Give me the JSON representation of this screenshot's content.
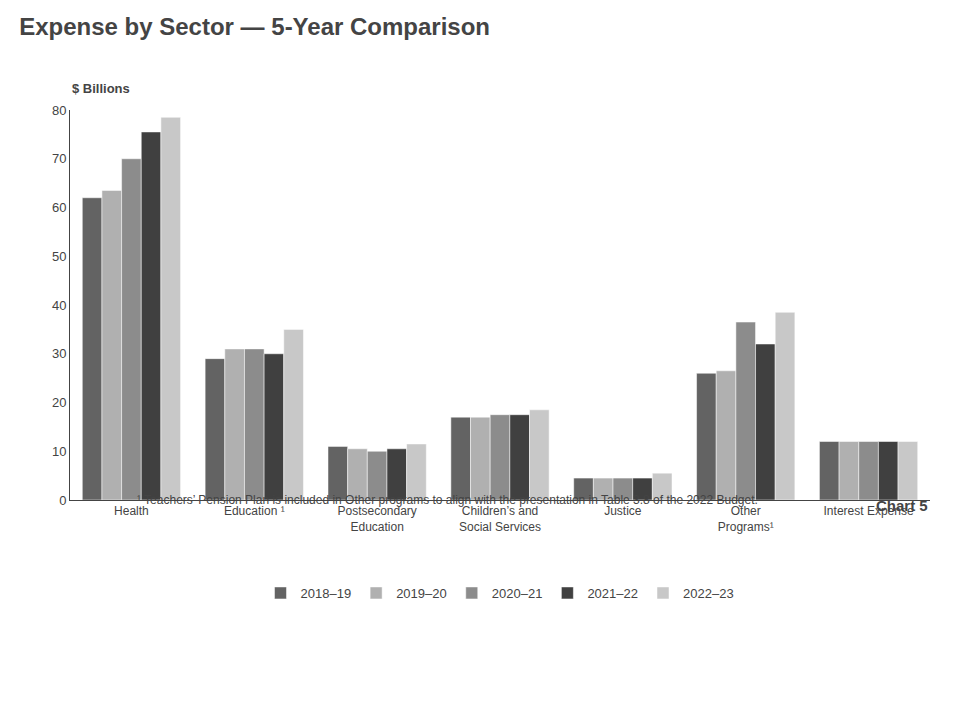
{
  "chart_data": {
    "type": "bar",
    "title": "Expense by Sector — 5-Year Comparison",
    "ylabel": "$ Billions",
    "annotations": [
      "Chart 5",
      "¹ Teachers’ Pension Plan is included in Other programs to align with the presentation in Table 3.8 of the 2022 Budget."
    ],
    "categories": [
      "Health",
      "Education ¹",
      "Postsecondary\nEducation",
      "Children’s and\nSocial Services",
      "Justice",
      "Other\nPrograms¹",
      "Interest Expense"
    ],
    "series": [
      {
        "name": "2018–19",
        "color": "#636363",
        "values": [
          62.0,
          29.0,
          11.0,
          17.0,
          4.5,
          26.0,
          12.0
        ]
      },
      {
        "name": "2019–20",
        "color": "#b0b0b0",
        "values": [
          63.5,
          31.0,
          10.5,
          17.0,
          4.5,
          26.5,
          12.0
        ]
      },
      {
        "name": "2020–21",
        "color": "#8c8c8c",
        "values": [
          70.0,
          31.0,
          10.0,
          17.5,
          4.5,
          36.5,
          12.0
        ]
      },
      {
        "name": "2021–22",
        "color": "#404040",
        "values": [
          75.5,
          30.0,
          10.5,
          17.5,
          4.5,
          32.0,
          12.0
        ]
      },
      {
        "name": "2022–23",
        "color": "#c8c8c8",
        "values": [
          78.5,
          35.0,
          11.5,
          18.5,
          5.5,
          38.5,
          12.0
        ]
      }
    ],
    "ylim": [
      0,
      80
    ],
    "yticks": [
      0,
      10,
      20,
      30,
      40,
      50,
      60,
      70,
      80
    ],
    "grid": false,
    "legend": "bottom"
  }
}
